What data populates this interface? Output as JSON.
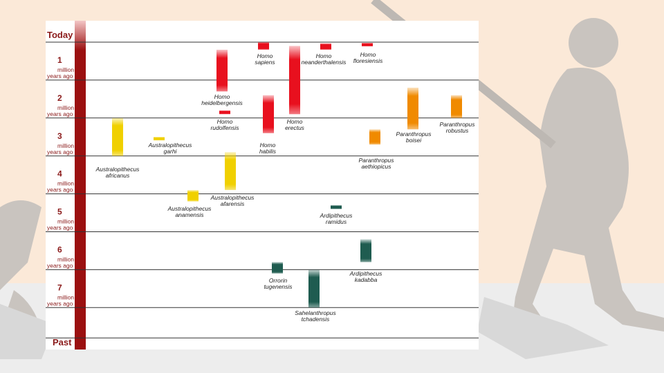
{
  "axis": {
    "top_label": "Today",
    "bottom_label": "Past",
    "unit_label": "million\nyears ago",
    "ticks": [
      1,
      2,
      3,
      4,
      5,
      6,
      7
    ]
  },
  "colors": {
    "homo": "#e8101e",
    "australopithecus": "#f0d000",
    "paranthropus": "#f08a00",
    "ardipithecus": "#1f5c50",
    "axis_bar": "#9b1010",
    "grid": "#333333"
  },
  "species": [
    {
      "id": "homo-sapiens",
      "name": "Homo\nsapiens",
      "group": "homo",
      "start": 0.2,
      "end": 0.0
    },
    {
      "id": "homo-neanderthalensis",
      "name": "Homo\nneanderthalensis",
      "group": "homo",
      "start": 0.2,
      "end": 0.03
    },
    {
      "id": "homo-floresiensis",
      "name": "Homo\nfloresiensis",
      "group": "homo",
      "start": 0.1,
      "end": 0.02
    },
    {
      "id": "homo-heidelbergensis",
      "name": "Homo\nheidelbergensis",
      "group": "homo",
      "start": 1.3,
      "end": 0.2
    },
    {
      "id": "homo-erectus",
      "name": "Homo\nerectus",
      "group": "homo",
      "start": 1.9,
      "end": 0.1
    },
    {
      "id": "homo-rudolfensis",
      "name": "Homo\nrudolfensis",
      "group": "homo",
      "start": 1.9,
      "end": 1.8
    },
    {
      "id": "homo-habilis",
      "name": "Homo\nhabilis",
      "group": "homo",
      "start": 2.4,
      "end": 1.4
    },
    {
      "id": "australopithecus-africanus",
      "name": "Australopithecus\nafricanus",
      "group": "australopithecus",
      "start": 3.0,
      "end": 2.0
    },
    {
      "id": "australopithecus-garhi",
      "name": "Australopithecus\ngarhi",
      "group": "australopithecus",
      "start": 2.5,
      "end": 2.5
    },
    {
      "id": "australopithecus-afarensis",
      "name": "Australopithecus\nafarensis",
      "group": "australopithecus",
      "start": 3.9,
      "end": 2.9
    },
    {
      "id": "australopithecus-anamensis",
      "name": "Australopithecus\nanamensis",
      "group": "australopithecus",
      "start": 4.2,
      "end": 3.9
    },
    {
      "id": "paranthropus-boisei",
      "name": "Paranthropus\nboisei",
      "group": "paranthropus",
      "start": 2.3,
      "end": 1.2
    },
    {
      "id": "paranthropus-robustus",
      "name": "Paranthropus\nrobustus",
      "group": "paranthropus",
      "start": 2.0,
      "end": 1.4
    },
    {
      "id": "paranthropus-aethiopicus",
      "name": "Paranthropus\naethiopicus",
      "group": "paranthropus",
      "start": 2.7,
      "end": 2.3
    },
    {
      "id": "ardipithecus-ramidus",
      "name": "Ardipithecus\nramidus",
      "group": "ardipithecus",
      "start": 4.4,
      "end": 4.3
    },
    {
      "id": "ardipithecus-kadabba",
      "name": "Ardipithecus\nkadabba",
      "group": "ardipithecus",
      "start": 5.8,
      "end": 5.2
    },
    {
      "id": "orrorin-tugenensis",
      "name": "Orrorin\ntugenensis",
      "group": "ardipithecus",
      "start": 6.1,
      "end": 5.8
    },
    {
      "id": "sahelanthropus-tchadensis",
      "name": "Sahelanthropus\ntchadensis",
      "group": "ardipithecus",
      "start": 7.0,
      "end": 6.0
    }
  ]
}
